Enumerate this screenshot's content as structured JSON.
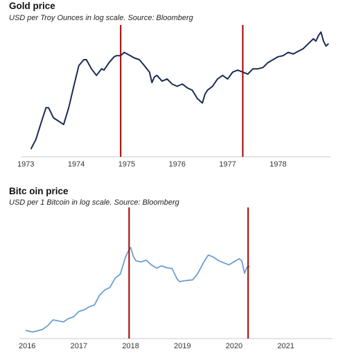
{
  "chart_data": [
    {
      "type": "line",
      "title": "Gold price",
      "subtitle": "USD per Troy Ounces in log scale. Source: Bloomberg",
      "xlabel": "",
      "ylabel": "",
      "yscale": "log",
      "x_ticks": [
        "1973",
        "1974",
        "1975",
        "1976",
        "1977",
        "1978"
      ],
      "xlim": [
        1972.9,
        1979.05
      ],
      "ylim": [
        60,
        230
      ],
      "color": "#1b2a52",
      "markers": [
        1974.88,
        1977.3
      ],
      "marker_color": "#a00000",
      "grid": false,
      "series": [
        {
          "x": [
            1973.1,
            1973.2,
            1973.3,
            1973.4,
            1973.45,
            1973.55,
            1973.65,
            1973.75,
            1973.85,
            1973.95,
            1974.05,
            1974.15,
            1974.2,
            1974.3,
            1974.4,
            1974.5,
            1974.55,
            1974.65,
            1974.75,
            1974.8,
            1974.88,
            1974.95,
            1975.05,
            1975.15,
            1975.25,
            1975.35,
            1975.45,
            1975.5,
            1975.55,
            1975.6,
            1975.7,
            1975.8,
            1975.9,
            1976.0,
            1976.1,
            1976.2,
            1976.3,
            1976.4,
            1976.5,
            1976.55,
            1976.6,
            1976.7,
            1976.8,
            1976.9,
            1977.0,
            1977.1,
            1977.2,
            1977.3,
            1977.4,
            1977.5,
            1977.6,
            1977.7,
            1977.8,
            1977.9,
            1978.0,
            1978.1,
            1978.2,
            1978.3,
            1978.4,
            1978.5,
            1978.6,
            1978.7,
            1978.75,
            1978.8,
            1978.85,
            1978.9,
            1978.95,
            1979.0
          ],
          "y": [
            65,
            72,
            85,
            100,
            100,
            90,
            87,
            84,
            100,
            125,
            155,
            165,
            165,
            150,
            140,
            150,
            148,
            160,
            170,
            172,
            172,
            178,
            173,
            168,
            165,
            155,
            145,
            130,
            138,
            140,
            132,
            135,
            128,
            125,
            128,
            123,
            120,
            110,
            105,
            115,
            120,
            125,
            135,
            140,
            135,
            145,
            148,
            145,
            142,
            150,
            150,
            152,
            160,
            165,
            170,
            172,
            178,
            175,
            180,
            185,
            195,
            205,
            200,
            212,
            220,
            200,
            190,
            195
          ]
        }
      ]
    },
    {
      "type": "line",
      "title": "Bitc oin price",
      "subtitle": "USD per 1 Bitcoin in log scale. Source: Bloomberg",
      "xlabel": "",
      "ylabel": "",
      "yscale": "log",
      "x_ticks": [
        "2016",
        "2017",
        "2018",
        "2019",
        "2020",
        "2021"
      ],
      "xlim": [
        2015.85,
        2021.9
      ],
      "ylim": [
        300,
        25000
      ],
      "color": "#6a9fd0",
      "markers": [
        2017.97,
        2020.27
      ],
      "marker_color": "#a00000",
      "grid": false,
      "series": [
        {
          "x": [
            2015.97,
            2016.1,
            2016.2,
            2016.3,
            2016.4,
            2016.5,
            2016.6,
            2016.7,
            2016.8,
            2016.9,
            2017.0,
            2017.1,
            2017.2,
            2017.3,
            2017.4,
            2017.5,
            2017.6,
            2017.7,
            2017.8,
            2017.9,
            2017.96,
            2018.0,
            2018.05,
            2018.1,
            2018.2,
            2018.3,
            2018.4,
            2018.5,
            2018.6,
            2018.7,
            2018.8,
            2018.9,
            2018.95,
            2019.0,
            2019.1,
            2019.2,
            2019.3,
            2019.4,
            2019.5,
            2019.6,
            2019.7,
            2019.8,
            2019.9,
            2020.0,
            2020.1,
            2020.15,
            2020.2,
            2020.25,
            2020.3
          ],
          "y": [
            430,
            400,
            420,
            450,
            530,
            680,
            650,
            620,
            720,
            780,
            980,
            1050,
            1200,
            1300,
            2000,
            2500,
            2800,
            4200,
            5000,
            10500,
            14000,
            16000,
            11000,
            9000,
            8500,
            9200,
            7500,
            6500,
            7200,
            6600,
            6400,
            4000,
            3600,
            3700,
            3800,
            3900,
            5200,
            8000,
            11500,
            10500,
            9000,
            8200,
            7500,
            8600,
            9800,
            8800,
            5200,
            6800,
            7000
          ]
        }
      ]
    }
  ]
}
